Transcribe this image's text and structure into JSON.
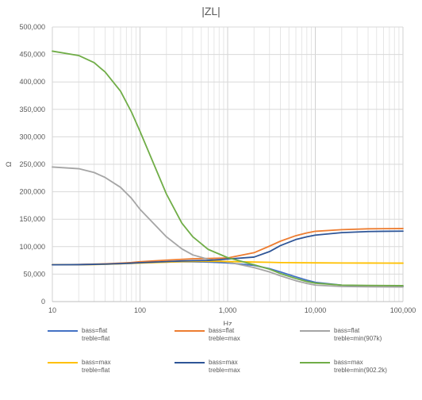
{
  "chart_data": {
    "type": "line",
    "title": "|ZL|",
    "xlabel": "Hz",
    "ylabel": "Ω",
    "x_scale": "log",
    "xlim": [
      10,
      100000
    ],
    "ylim": [
      0,
      500000
    ],
    "grid": true,
    "legend_position": "bottom",
    "x_ticks": [
      "10",
      "100",
      "1,000",
      "10,000",
      "100,000"
    ],
    "y_ticks": [
      "0",
      "50,000",
      "100,000",
      "150,000",
      "200,000",
      "250,000",
      "300,000",
      "350,000",
      "400,000",
      "450,000",
      "500,000"
    ],
    "x": [
      10,
      20,
      30,
      40,
      60,
      80,
      100,
      200,
      300,
      400,
      600,
      1000,
      2000,
      3000,
      4000,
      6000,
      8000,
      10000,
      20000,
      40000,
      60000,
      100000
    ],
    "series": [
      {
        "name": "bass=flat\ntreble=flat",
        "color": "#4472C4",
        "values": [
          67000,
          67300,
          67800,
          68200,
          69000,
          69800,
          70500,
          72000,
          72500,
          72500,
          72000,
          70500,
          66000,
          60000,
          54000,
          45000,
          39000,
          35000,
          30000,
          28500,
          28000,
          27500
        ]
      },
      {
        "name": "bass=flat\ntreble=max",
        "color": "#ED7D31",
        "values": [
          67000,
          67500,
          68200,
          68800,
          70000,
          71200,
          72500,
          75500,
          77000,
          78000,
          78500,
          79500,
          89000,
          101000,
          110000,
          120000,
          125000,
          128000,
          131000,
          132500,
          132800,
          133000
        ]
      },
      {
        "name": "bass=flat\ntreble=min(907k)",
        "color": "#A5A5A5",
        "values": [
          245000,
          242000,
          235000,
          226000,
          208000,
          188000,
          168000,
          118000,
          96000,
          85000,
          77000,
          72000,
          62000,
          54000,
          47000,
          38000,
          33000,
          30000,
          27500,
          27000,
          26800,
          26500
        ]
      },
      {
        "name": "bass=max\ntreble=flat",
        "color": "#FFC000",
        "values": [
          67000,
          67200,
          67500,
          68000,
          68800,
          69500,
          70200,
          71800,
          72800,
          73200,
          73500,
          73000,
          72000,
          71500,
          71000,
          70800,
          70600,
          70500,
          70300,
          70200,
          70100,
          70000
        ]
      },
      {
        "name": "bass=max\ntreble=max",
        "color": "#2E5597",
        "values": [
          67000,
          67300,
          67800,
          68300,
          69200,
          70000,
          70800,
          72800,
          74000,
          74500,
          75000,
          77500,
          81000,
          91000,
          102000,
          113000,
          118000,
          121000,
          125500,
          127500,
          128000,
          128300
        ]
      },
      {
        "name": "bass=max\ntreble=min(902.2k)",
        "color": "#70AD47",
        "values": [
          456000,
          448000,
          435000,
          418000,
          383000,
          345000,
          310000,
          196000,
          143000,
          118000,
          95000,
          80000,
          67000,
          59000,
          51000,
          42000,
          36500,
          33500,
          30000,
          29500,
          29300,
          29000
        ]
      }
    ]
  }
}
